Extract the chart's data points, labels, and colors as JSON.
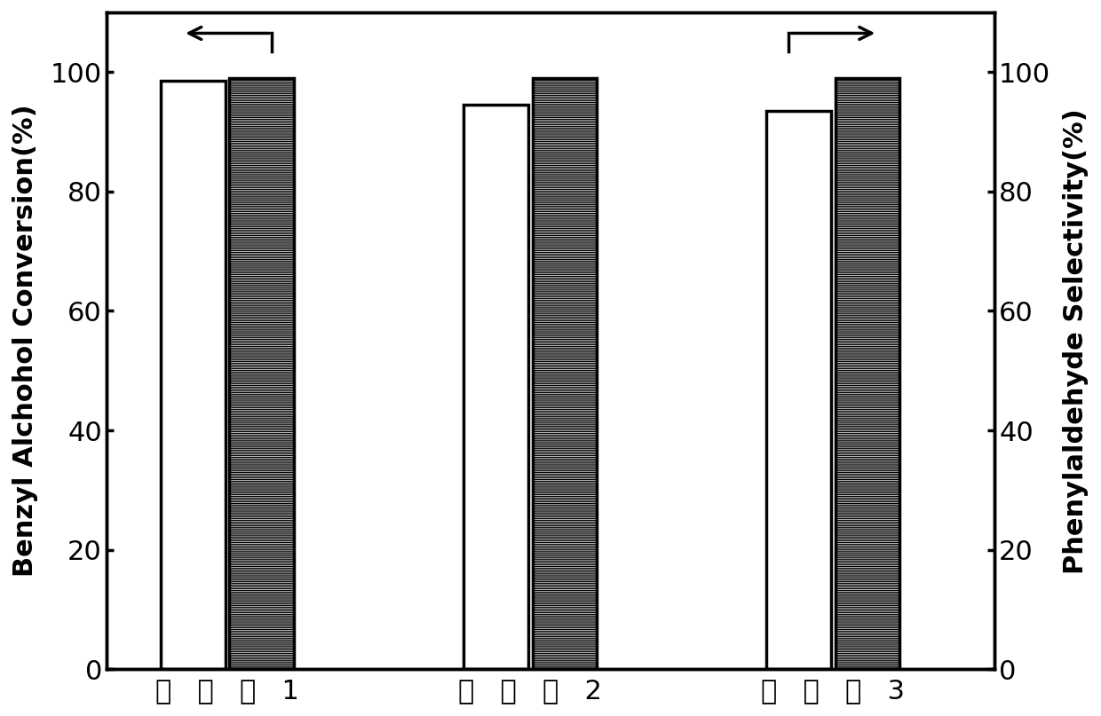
{
  "groups": [
    "实施例 1",
    "实施例 2",
    "实施例 3"
  ],
  "conversion_values": [
    98.5,
    94.5,
    93.5
  ],
  "selectivity_values": [
    99.0,
    99.0,
    99.0
  ],
  "ylim": [
    0,
    110
  ],
  "yticks": [
    0,
    20,
    40,
    60,
    80,
    100
  ],
  "ylabel_left": "Benzyl Alchohol Conversion(%)",
  "ylabel_right": "Phenylaldehyde Selectivity(%)",
  "bar_color_solid": "#ffffff",
  "bar_color_hatched": "#ffffff",
  "hatch_pattern": "//////",
  "edge_color": "#000000",
  "linewidth": 2.5,
  "tick_fontsize": 22,
  "label_fontsize": 22,
  "xtick_labels": [
    "实   施   例   1",
    "实   施   例   2",
    "实   施   例   3"
  ]
}
